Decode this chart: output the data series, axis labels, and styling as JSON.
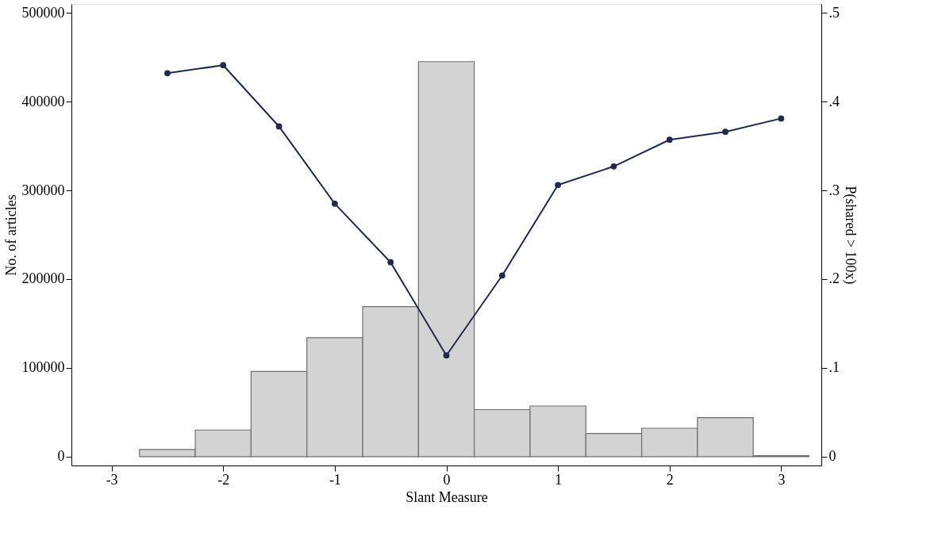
{
  "chart_data": {
    "type": "histogram",
    "xlabel": "Slant Measure",
    "ylabel": "No. of articles",
    "y2label": "P(shared > 100x)",
    "bins": [
      -2.75,
      -2.25,
      -1.75,
      -1.25,
      -0.75,
      -0.25,
      0.25,
      0.75,
      1.25,
      1.75,
      2.25,
      2.75,
      3.25
    ],
    "values": [
      8000,
      30000,
      96000,
      134000,
      169000,
      445000,
      53000,
      57000,
      26000,
      32000,
      44000,
      1000
    ],
    "color": "#d3d3d3",
    "series": [
      {
        "type": "line",
        "axis": "y2",
        "color": "#1f2a4f",
        "x": [
          -2.5,
          -2,
          -1.5,
          -1,
          -0.5,
          0,
          0.5,
          1,
          1.5,
          2,
          2.5,
          3
        ],
        "values": [
          0.432,
          0.441,
          0.372,
          0.285,
          0.219,
          0.114,
          0.204,
          0.306,
          0.327,
          0.357,
          0.366,
          0.381
        ]
      }
    ],
    "marker": "circle",
    "xlim": [
      -3.36,
      3.36
    ],
    "xticks": [
      -3,
      -2,
      -1,
      0,
      1,
      2,
      3
    ],
    "ylim": [
      -10000,
      510000
    ],
    "yticks": [
      0,
      100000,
      200000,
      300000,
      400000,
      500000
    ],
    "y2lim": [
      -0.01,
      0.51
    ],
    "y2ticks": [
      0,
      {
        "value": 0.1,
        "label": ".1"
      },
      {
        "value": 0.2,
        "label": ".2"
      },
      {
        "value": 0.3,
        "label": ".3"
      },
      {
        "value": 0.4,
        "label": ".4"
      },
      {
        "value": 0.5,
        "label": ".5"
      }
    ]
  }
}
